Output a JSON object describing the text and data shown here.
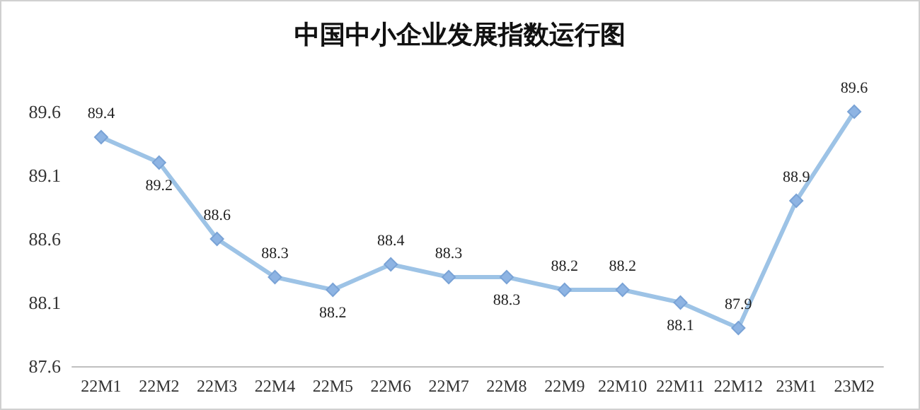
{
  "chart_data": {
    "type": "line",
    "title": "中国中小企业发展指数运行图",
    "categories": [
      "22M1",
      "22M2",
      "22M3",
      "22M4",
      "22M5",
      "22M6",
      "22M7",
      "22M8",
      "22M9",
      "22M10",
      "22M11",
      "22M12",
      "23M1",
      "23M2"
    ],
    "series": [
      {
        "color": "#9dc3e6",
        "values": [
          89.4,
          89.2,
          88.6,
          88.3,
          88.2,
          88.4,
          88.3,
          88.3,
          88.2,
          88.2,
          88.1,
          87.9,
          88.9,
          89.6
        ]
      }
    ],
    "ylim": [
      87.6,
      89.6
    ],
    "yticks": [
      87.6,
      88.1,
      88.6,
      89.1,
      89.6
    ],
    "marker": "diamond",
    "line_style": "solid",
    "data_labels": true
  }
}
